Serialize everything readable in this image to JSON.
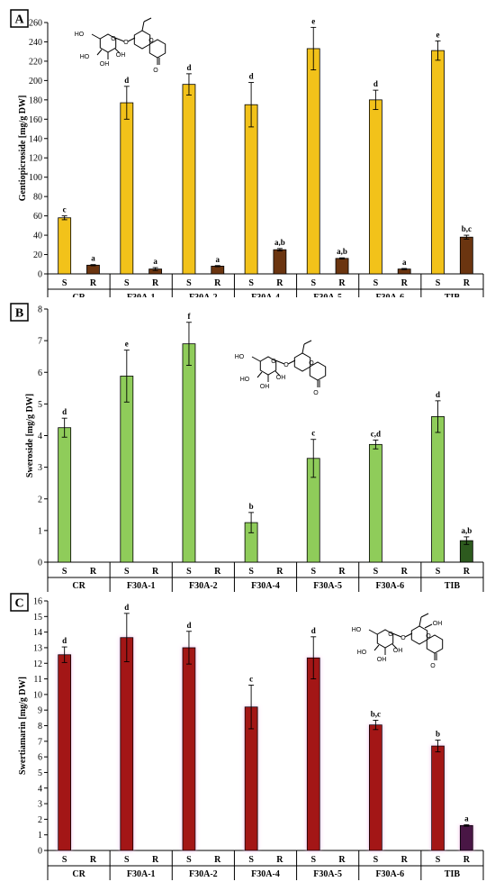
{
  "figure": {
    "colors": {
      "s_yellow": "#f2c21a",
      "r_brown": "#6b3510",
      "s_green": "#8fcc5a",
      "r_green": "#2d5a1e",
      "s_red": "#a31515",
      "r_purple": "#4a1445",
      "glow_pink": "#f4b6e8"
    }
  },
  "chart_data": [
    {
      "panel": "A",
      "type": "bar",
      "ylabel": "Gentiopicroside [mg/g DW]",
      "ylim": [
        0,
        260
      ],
      "yticks": [
        0,
        20,
        40,
        60,
        80,
        100,
        120,
        140,
        160,
        180,
        200,
        220,
        240,
        260
      ],
      "categories": [
        "CR",
        "F30A-1",
        "F30A-2",
        "F30A-4",
        "F30A-5",
        "F30A-6",
        "TIB"
      ],
      "subcategories": [
        "S",
        "R"
      ],
      "series": [
        {
          "name": "S",
          "values": [
            58,
            177,
            196,
            175,
            233,
            180,
            231
          ],
          "errors": [
            2,
            17,
            11,
            23,
            22,
            10,
            10
          ],
          "labels": [
            "c",
            "d",
            "d",
            "d",
            "e",
            "d",
            "e"
          ]
        },
        {
          "name": "R",
          "values": [
            9,
            5,
            8,
            25,
            16,
            5,
            38
          ],
          "errors": [
            0.6,
            1.5,
            0.6,
            1.2,
            0.6,
            0.6,
            2
          ],
          "labels": [
            "a",
            "a",
            "a",
            "a,b",
            "a,b",
            "a",
            "b,c"
          ]
        }
      ]
    },
    {
      "panel": "B",
      "type": "bar",
      "ylabel": "Sweroside [mg/g DW]",
      "ylim": [
        0,
        8
      ],
      "yticks": [
        0,
        1,
        2,
        3,
        4,
        5,
        6,
        7,
        8
      ],
      "categories": [
        "CR",
        "F30A-1",
        "F30A-2",
        "F30A-4",
        "F30A-5",
        "F30A-6",
        "TIB"
      ],
      "subcategories": [
        "S",
        "R"
      ],
      "series": [
        {
          "name": "S",
          "values": [
            4.25,
            5.88,
            6.9,
            1.25,
            3.28,
            3.72,
            4.6
          ],
          "errors": [
            0.3,
            0.82,
            0.68,
            0.32,
            0.6,
            0.14,
            0.5
          ],
          "labels": [
            "d",
            "e",
            "f",
            "b",
            "c",
            "c,d",
            "d"
          ]
        },
        {
          "name": "R",
          "values": [
            null,
            null,
            null,
            null,
            null,
            null,
            0.68
          ],
          "errors": [
            null,
            null,
            null,
            null,
            null,
            null,
            0.12
          ],
          "labels": [
            "",
            "",
            "",
            "",
            "",
            "",
            "a,b"
          ]
        }
      ]
    },
    {
      "panel": "C",
      "type": "bar",
      "ylabel": "Swertiamarin [mg/g DW]",
      "ylim": [
        0,
        16
      ],
      "yticks": [
        0,
        1,
        2,
        3,
        4,
        5,
        6,
        7,
        8,
        9,
        10,
        11,
        12,
        13,
        14,
        15,
        16
      ],
      "categories": [
        "CR",
        "F30A-1",
        "F30A-2",
        "F30A-4",
        "F30A-5",
        "F30A-6",
        "TIB"
      ],
      "subcategories": [
        "S",
        "R"
      ],
      "series": [
        {
          "name": "S",
          "values": [
            12.55,
            13.65,
            13.0,
            9.2,
            12.35,
            8.05,
            6.7
          ],
          "errors": [
            0.5,
            1.55,
            1.05,
            1.4,
            1.35,
            0.3,
            0.38
          ],
          "labels": [
            "d",
            "d",
            "d",
            "c",
            "d",
            "b,c",
            "b"
          ]
        },
        {
          "name": "R",
          "values": [
            null,
            null,
            null,
            null,
            null,
            null,
            1.6
          ],
          "errors": [
            null,
            null,
            null,
            null,
            null,
            null,
            0.05
          ],
          "labels": [
            "",
            "",
            "",
            "",
            "",
            "",
            "a"
          ]
        }
      ]
    }
  ],
  "molecules": {
    "a_labels": [
      "HO",
      "O",
      "O",
      "HO",
      "OH",
      "OH",
      "O",
      "O"
    ],
    "b_labels": [
      "HO",
      "O",
      "O",
      "HO",
      "OH",
      "OH",
      "O",
      "O"
    ],
    "c_labels": [
      "HO",
      "O",
      "O",
      "HO",
      "OH",
      "OH",
      "OH",
      "O",
      "O"
    ]
  }
}
